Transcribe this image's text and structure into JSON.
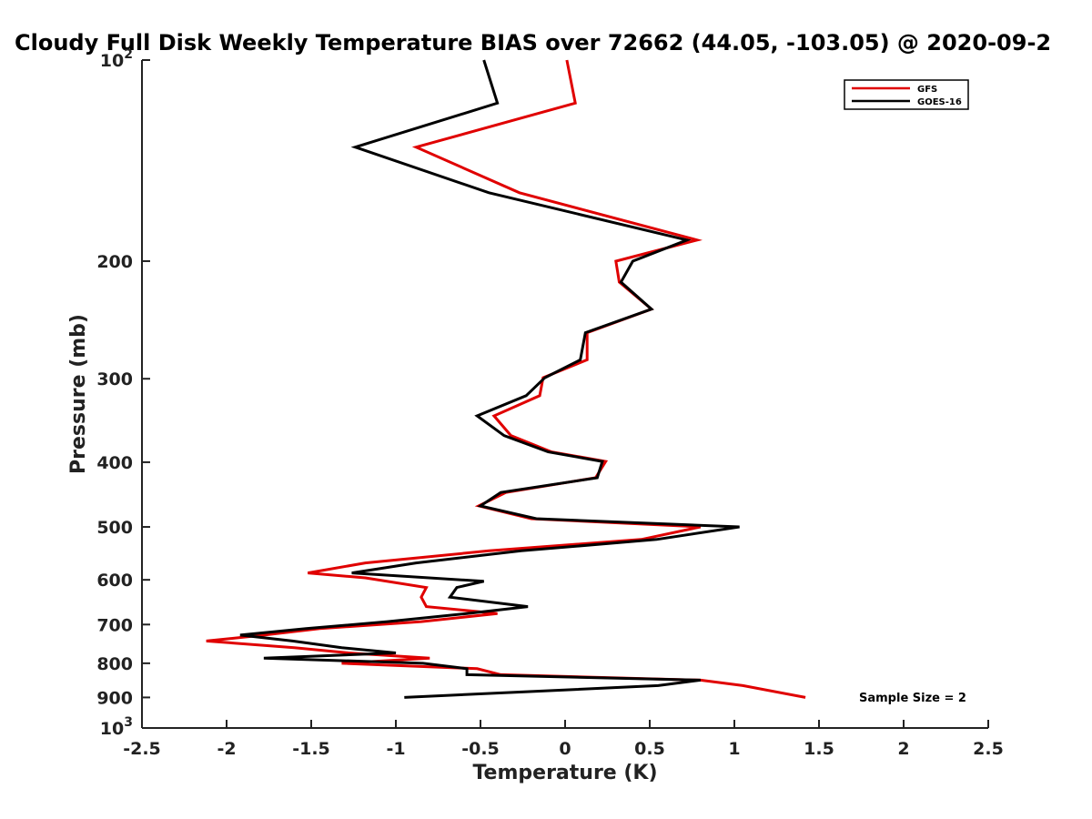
{
  "chart_data": {
    "type": "line",
    "title": "Cloudy Full Disk Weekly Temperature BIAS over 72662 (44.05, -103.05) @ 2020-09-2",
    "xlabel": "Temperature (K)",
    "ylabel": "Pressure (mb)",
    "xlim": [
      -2.5,
      2.5
    ],
    "ylim": [
      100,
      1000
    ],
    "y_scale": "log",
    "y_reversed": true,
    "x_ticks": [
      "-2.5",
      "-2",
      "-1.5",
      "-1",
      "-0.5",
      "0",
      "0.5",
      "1",
      "1.5",
      "2",
      "2.5"
    ],
    "x_tick_values": [
      -2.5,
      -2,
      -1.5,
      -1,
      -0.5,
      0,
      0.5,
      1,
      1.5,
      2,
      2.5
    ],
    "y_tick_values": [
      100,
      200,
      300,
      400,
      500,
      600,
      700,
      800,
      900,
      1000
    ],
    "y_tick_labels": [
      {
        "base": "10",
        "exp": "2"
      },
      {
        "base": "200",
        "exp": ""
      },
      {
        "base": "300",
        "exp": ""
      },
      {
        "base": "400",
        "exp": ""
      },
      {
        "base": "500",
        "exp": ""
      },
      {
        "base": "600",
        "exp": ""
      },
      {
        "base": "700",
        "exp": ""
      },
      {
        "base": "800",
        "exp": ""
      },
      {
        "base": "900",
        "exp": ""
      },
      {
        "base": "10",
        "exp": "3"
      }
    ],
    "grid": false,
    "legend_position": "top-right",
    "series": [
      {
        "name": "GFS",
        "color": "#e00000",
        "points": [
          [
            0.01,
            100
          ],
          [
            0.06,
            116
          ],
          [
            -0.88,
            135
          ],
          [
            -0.27,
            158
          ],
          [
            0.78,
            186
          ],
          [
            0.3,
            200
          ],
          [
            0.32,
            215
          ],
          [
            0.51,
            236
          ],
          [
            0.13,
            256
          ],
          [
            0.13,
            281
          ],
          [
            -0.13,
            299
          ],
          [
            -0.15,
            318
          ],
          [
            -0.42,
            341
          ],
          [
            -0.32,
            365
          ],
          [
            -0.08,
            386
          ],
          [
            0.24,
            399
          ],
          [
            0.18,
            422
          ],
          [
            -0.35,
            444
          ],
          [
            -0.51,
            465
          ],
          [
            -0.2,
            486
          ],
          [
            0.8,
            500
          ],
          [
            0.45,
            522
          ],
          [
            -0.45,
            543
          ],
          [
            -1.18,
            566
          ],
          [
            -1.52,
            586
          ],
          [
            -1.18,
            596
          ],
          [
            -0.82,
            616
          ],
          [
            -0.85,
            637
          ],
          [
            -0.82,
            658
          ],
          [
            -0.4,
            674
          ],
          [
            -0.85,
            693
          ],
          [
            -1.45,
            710
          ],
          [
            -1.78,
            726
          ],
          [
            -2.12,
            741
          ],
          [
            -1.6,
            758
          ],
          [
            -1.28,
            772
          ],
          [
            -0.8,
            786
          ],
          [
            -1.32,
            800
          ],
          [
            -0.52,
            815
          ],
          [
            -0.38,
            832
          ],
          [
            0.8,
            848
          ],
          [
            1.05,
            864
          ],
          [
            1.42,
            900
          ]
        ]
      },
      {
        "name": "GOES-16",
        "color": "#000000",
        "points": [
          [
            -0.48,
            100
          ],
          [
            -0.4,
            116
          ],
          [
            -1.24,
            135
          ],
          [
            -0.45,
            158
          ],
          [
            0.72,
            186
          ],
          [
            0.4,
            200
          ],
          [
            0.33,
            215
          ],
          [
            0.51,
            236
          ],
          [
            0.12,
            256
          ],
          [
            0.09,
            281
          ],
          [
            -0.12,
            299
          ],
          [
            -0.23,
            318
          ],
          [
            -0.52,
            341
          ],
          [
            -0.36,
            365
          ],
          [
            -0.1,
            386
          ],
          [
            0.22,
            399
          ],
          [
            0.19,
            422
          ],
          [
            -0.38,
            444
          ],
          [
            -0.5,
            465
          ],
          [
            -0.17,
            486
          ],
          [
            1.03,
            500
          ],
          [
            0.54,
            522
          ],
          [
            -0.26,
            543
          ],
          [
            -0.88,
            566
          ],
          [
            -1.26,
            586
          ],
          [
            -0.48,
            603
          ],
          [
            -0.64,
            616
          ],
          [
            -0.68,
            637
          ],
          [
            -0.22,
            658
          ],
          [
            -0.58,
            674
          ],
          [
            -1.05,
            693
          ],
          [
            -1.53,
            710
          ],
          [
            -1.92,
            726
          ],
          [
            -1.61,
            741
          ],
          [
            -1.32,
            758
          ],
          [
            -1.0,
            772
          ],
          [
            -1.78,
            786
          ],
          [
            -0.84,
            800
          ],
          [
            -0.58,
            815
          ],
          [
            -0.58,
            832
          ],
          [
            0.8,
            848
          ],
          [
            0.55,
            864
          ],
          [
            -0.95,
            900
          ]
        ]
      }
    ],
    "annotation": "Sample Size = 2"
  }
}
